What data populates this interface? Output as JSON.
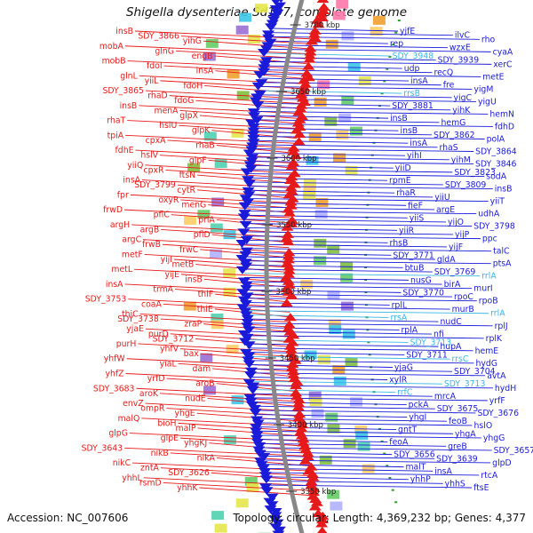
{
  "title": "Shigella dysenteriae Sd197, complete genome",
  "footer": {
    "accession": "Accession: NC_007606",
    "summary": "Topology: circular; Length: 4,369,232 bp; Genes: 4,377"
  },
  "colors": {
    "forward": "#e61a1a",
    "reverse": "#1a1ad9",
    "rna": "#38b6e6",
    "backbone": "#888888",
    "marker": "#2a9d2a"
  },
  "kbp_ticks": [
    "3700 kbp",
    "3650 kbp",
    "3600 kbp",
    "3550 kbp",
    "3500 kbp",
    "3450 kbp",
    "3400 kbp",
    "3350 kbp"
  ],
  "left_genes": [
    "insB",
    "SDY_3866",
    "yihG",
    "mobA",
    "glnG",
    "engB",
    "mobB",
    "fdoI",
    "insA",
    "glnL",
    "yiiL",
    "fdoH",
    "SDY_3865",
    "rhaD",
    "fdoG",
    "insB",
    "menA",
    "glpX",
    "rhaT",
    "hslU",
    "glpK",
    "tpiA",
    "cpxA",
    "rhaB",
    "fdhE",
    "hslV",
    "glpF",
    "yiiQ",
    "cpxR",
    "ftsN",
    "insA",
    "SDY_3799",
    "cytR",
    "fpr",
    "oxyR",
    "menG",
    "frwD",
    "pflC",
    "priA",
    "argH",
    "argB",
    "pflD",
    "argC",
    "frwB",
    "frwC",
    "metF",
    "yijI",
    "metB",
    "metL",
    "yijE",
    "insB",
    "insA",
    "trmA",
    "thiF",
    "SDY_3753",
    "coaA",
    "thiE",
    "thiC",
    "SDY_3738",
    "zraP",
    "yjaE",
    "purD",
    "SDY_3712",
    "purH",
    "yhfV",
    "bax",
    "yhfW",
    "yiaL",
    "dam",
    "yhfZ",
    "yrfD",
    "aroB",
    "SDY_3683",
    "aroK",
    "nudE",
    "envZ",
    "ompR",
    "yhgE",
    "malQ",
    "bioH",
    "malP",
    "glpG",
    "glpE",
    "yhgKJ",
    "SDY_3643",
    "nikB",
    "nikA",
    "nikC",
    "zntA",
    "SDY_3626",
    "yhhL",
    "rsmD",
    "yhhK"
  ],
  "right_genes": [
    "yjfE",
    "ilvC",
    "rho",
    "rep",
    "wzxE",
    "cyaA",
    "SDY_3948",
    "SDY_3939",
    "xerC",
    "udp",
    "recQ",
    "metE",
    "insA",
    "fre",
    "yigM",
    "rrsB",
    "yigC",
    "yigU",
    "SDY_3881",
    "yihK",
    "hemN",
    "insB",
    "hemG",
    "fdhD",
    "insB",
    "SDY_3862",
    "polA",
    "insA",
    "rhaS",
    "SDY_3864",
    "yihI",
    "yihM",
    "SDY_3846",
    "yiiD",
    "SDY_3823",
    "sodA",
    "rpmE",
    "SDY_3809",
    "insB",
    "rhaR",
    "yiiU",
    "yiiT",
    "fieF",
    "argE",
    "udhA",
    "yiiS",
    "yijO",
    "SDY_3798",
    "yiiR",
    "yijP",
    "ppc",
    "rhsB",
    "yijF",
    "talC",
    "SDY_3771",
    "gldA",
    "ptsA",
    "btuB",
    "SDY_3769",
    "rrlA",
    "nusG",
    "birA",
    "murI",
    "SDY_3770",
    "rpoC",
    "rpoB",
    "rplL",
    "murB",
    "rrlA",
    "rrsA",
    "nudC",
    "rplJ",
    "rplA",
    "nfi",
    "rplK",
    "SDY_3713",
    "hupA",
    "hemE",
    "SDY_3711",
    "rrsC",
    "hydG",
    "yjaG",
    "SDY_3704",
    "avtA",
    "xylR",
    "SDY_3713",
    "hydH",
    "rrfC",
    "mrcA",
    "yrfF",
    "pckA",
    "SDY_3675",
    "SDY_3676",
    "yhgI",
    "feoB",
    "hslO",
    "gntT",
    "yhgA",
    "yhgG",
    "feoA",
    "greB",
    "SDY_3657",
    "SDY_3656",
    "SDY_3639",
    "glpD",
    "malT",
    "insA",
    "rtcA",
    "yhhP",
    "yhhS",
    "ftsE"
  ],
  "rna_genes": [
    "SDY_3948",
    "rrsB",
    "rrlA",
    "rrlA",
    "rrsA",
    "SDY_3713",
    "rrsC",
    "rrfC"
  ]
}
